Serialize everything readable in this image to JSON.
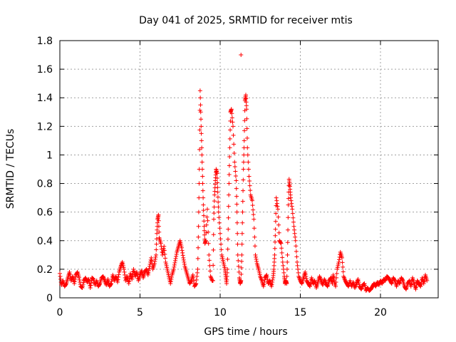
{
  "chart_data": {
    "type": "scatter",
    "title": "Day 041 of 2025, SRMTID for receiver mtis",
    "xlabel": "GPS time / hours",
    "ylabel": "SRMTID / TECUs",
    "xlim": [
      0,
      23.6
    ],
    "ylim": [
      0,
      1.8
    ],
    "xticks": [
      0,
      5,
      10,
      15,
      20
    ],
    "xtick_labels": [
      "0",
      "5",
      "10",
      "15",
      "20"
    ],
    "yticks": [
      0,
      0.2,
      0.4,
      0.6,
      0.8,
      1.0,
      1.2,
      1.4,
      1.6,
      1.8
    ],
    "ytick_labels": [
      "0",
      "0.2",
      "0.4",
      "0.6",
      "0.8",
      "1",
      "1.2",
      "1.4",
      "1.6",
      "1.8"
    ],
    "grid": true,
    "marker": "plus",
    "colors": {
      "series": "#ff0000",
      "grid": "#a0a0a0",
      "axes": "#000000"
    },
    "series": [
      {
        "name": "SRMTID",
        "x": [
          0.0,
          0.1,
          0.2,
          0.3,
          0.4,
          0.5,
          0.6,
          0.7,
          0.8,
          0.9,
          1.0,
          1.1,
          1.2,
          1.3,
          1.4,
          1.5,
          1.6,
          1.7,
          1.8,
          1.9,
          2.0,
          2.1,
          2.2,
          2.3,
          2.4,
          2.5,
          2.6,
          2.7,
          2.8,
          2.9,
          3.0,
          3.1,
          3.2,
          3.3,
          3.4,
          3.5,
          3.6,
          3.7,
          3.8,
          3.9,
          4.0,
          4.1,
          4.2,
          4.3,
          4.4,
          4.5,
          4.6,
          4.7,
          4.8,
          4.9,
          5.0,
          5.1,
          5.2,
          5.3,
          5.4,
          5.5,
          5.6,
          5.7,
          5.8,
          5.9,
          6.0,
          6.05,
          6.1,
          6.15,
          6.2,
          6.3,
          6.4,
          6.5,
          6.6,
          6.7,
          6.8,
          6.9,
          7.0,
          7.1,
          7.2,
          7.3,
          7.4,
          7.5,
          7.6,
          7.7,
          7.8,
          7.9,
          8.0,
          8.1,
          8.2,
          8.3,
          8.4,
          8.5,
          8.6,
          8.65,
          8.7,
          8.75,
          8.8,
          8.85,
          8.9,
          8.95,
          9.0,
          9.05,
          9.1,
          9.2,
          9.3,
          9.4,
          9.5,
          9.55,
          9.6,
          9.65,
          9.7,
          9.75,
          9.8,
          9.85,
          9.9,
          10.0,
          10.1,
          10.2,
          10.3,
          10.35,
          10.4,
          10.45,
          10.5,
          10.55,
          10.6,
          10.65,
          10.7,
          10.8,
          10.9,
          11.0,
          11.05,
          11.1,
          11.2,
          11.25,
          11.3,
          11.35,
          11.4,
          11.45,
          11.5,
          11.55,
          11.6,
          11.65,
          11.7,
          11.8,
          11.9,
          12.0,
          12.1,
          12.2,
          12.3,
          12.4,
          12.5,
          12.6,
          12.7,
          12.8,
          12.9,
          13.0,
          13.1,
          13.2,
          13.3,
          13.35,
          13.4,
          13.45,
          13.5,
          13.6,
          13.7,
          13.8,
          13.9,
          14.0,
          14.05,
          14.1,
          14.15,
          14.2,
          14.25,
          14.3,
          14.35,
          14.4,
          14.5,
          14.6,
          14.7,
          14.8,
          14.9,
          15.0,
          15.1,
          15.2,
          15.3,
          15.4,
          15.5,
          15.6,
          15.7,
          15.8,
          15.9,
          16.0,
          16.1,
          16.2,
          16.3,
          16.4,
          16.5,
          16.6,
          16.7,
          16.8,
          16.9,
          17.0,
          17.05,
          17.1,
          17.2,
          17.3,
          17.4,
          17.5,
          17.6,
          17.7,
          17.8,
          17.9,
          18.0,
          18.1,
          18.2,
          18.3,
          18.4,
          18.5,
          18.6,
          18.7,
          18.8,
          18.9,
          19.0,
          19.1,
          19.2,
          19.3,
          19.4,
          19.5,
          19.6,
          19.7,
          19.8,
          19.9,
          20.0,
          20.1,
          20.2,
          20.3,
          20.4,
          20.5,
          20.6,
          20.7,
          20.8,
          20.9,
          21.0,
          21.1,
          21.2,
          21.3,
          21.4,
          21.5,
          21.6,
          21.7,
          21.8,
          21.9,
          22.0,
          22.1,
          22.2,
          22.3,
          22.4,
          22.5,
          22.6,
          22.7,
          22.8,
          22.9
        ],
        "y": [
          0.17,
          0.09,
          0.12,
          0.08,
          0.1,
          0.14,
          0.18,
          0.12,
          0.15,
          0.1,
          0.16,
          0.18,
          0.14,
          0.08,
          0.07,
          0.12,
          0.14,
          0.11,
          0.13,
          0.07,
          0.14,
          0.13,
          0.09,
          0.12,
          0.08,
          0.1,
          0.14,
          0.15,
          0.12,
          0.09,
          0.13,
          0.08,
          0.1,
          0.16,
          0.12,
          0.15,
          0.11,
          0.18,
          0.22,
          0.25,
          0.2,
          0.12,
          0.15,
          0.1,
          0.17,
          0.13,
          0.2,
          0.15,
          0.18,
          0.12,
          0.16,
          0.19,
          0.14,
          0.18,
          0.2,
          0.16,
          0.22,
          0.28,
          0.2,
          0.24,
          0.3,
          0.45,
          0.55,
          0.58,
          0.42,
          0.38,
          0.3,
          0.36,
          0.25,
          0.2,
          0.15,
          0.1,
          0.16,
          0.2,
          0.26,
          0.32,
          0.36,
          0.4,
          0.35,
          0.28,
          0.22,
          0.18,
          0.14,
          0.1,
          0.12,
          0.16,
          0.08,
          0.1,
          0.2,
          0.5,
          0.9,
          1.45,
          1.25,
          1.05,
          0.85,
          0.65,
          0.5,
          0.38,
          0.4,
          0.62,
          0.3,
          0.15,
          0.12,
          0.12,
          0.55,
          0.72,
          0.82,
          0.9,
          0.87,
          0.74,
          0.6,
          0.45,
          0.3,
          0.25,
          0.2,
          0.15,
          0.1,
          0.2,
          0.48,
          0.8,
          1.05,
          1.3,
          1.32,
          1.2,
          0.95,
          0.82,
          0.6,
          0.3,
          0.14,
          0.1,
          0.12,
          0.3,
          0.6,
          0.9,
          1.1,
          1.38,
          1.42,
          1.32,
          1.05,
          0.85,
          0.72,
          0.68,
          0.55,
          0.3,
          0.24,
          0.2,
          0.15,
          0.12,
          0.08,
          0.14,
          0.16,
          0.1,
          0.12,
          0.08,
          0.14,
          0.2,
          0.3,
          0.48,
          0.7,
          0.62,
          0.4,
          0.38,
          0.25,
          0.15,
          0.1,
          0.12,
          0.1,
          0.3,
          0.65,
          0.83,
          0.78,
          0.7,
          0.62,
          0.5,
          0.4,
          0.25,
          0.15,
          0.12,
          0.1,
          0.14,
          0.18,
          0.12,
          0.1,
          0.08,
          0.14,
          0.1,
          0.12,
          0.07,
          0.11,
          0.15,
          0.12,
          0.09,
          0.13,
          0.1,
          0.08,
          0.12,
          0.14,
          0.1,
          0.16,
          0.12,
          0.08,
          0.2,
          0.25,
          0.32,
          0.28,
          0.15,
          0.12,
          0.1,
          0.08,
          0.12,
          0.08,
          0.11,
          0.07,
          0.1,
          0.13,
          0.08,
          0.06,
          0.09,
          0.1,
          0.05,
          0.07,
          0.05,
          0.06,
          0.08,
          0.1,
          0.08,
          0.11,
          0.09,
          0.12,
          0.1,
          0.13,
          0.12,
          0.15,
          0.14,
          0.12,
          0.1,
          0.14,
          0.12,
          0.08,
          0.12,
          0.1,
          0.14,
          0.12,
          0.08,
          0.06,
          0.1,
          0.12,
          0.08,
          0.14,
          0.1,
          0.06,
          0.12,
          0.1,
          0.08,
          0.14,
          0.1,
          0.16,
          0.12
        ],
        "outliers": [
          {
            "x": 11.3,
            "y": 1.7
          }
        ]
      }
    ]
  }
}
